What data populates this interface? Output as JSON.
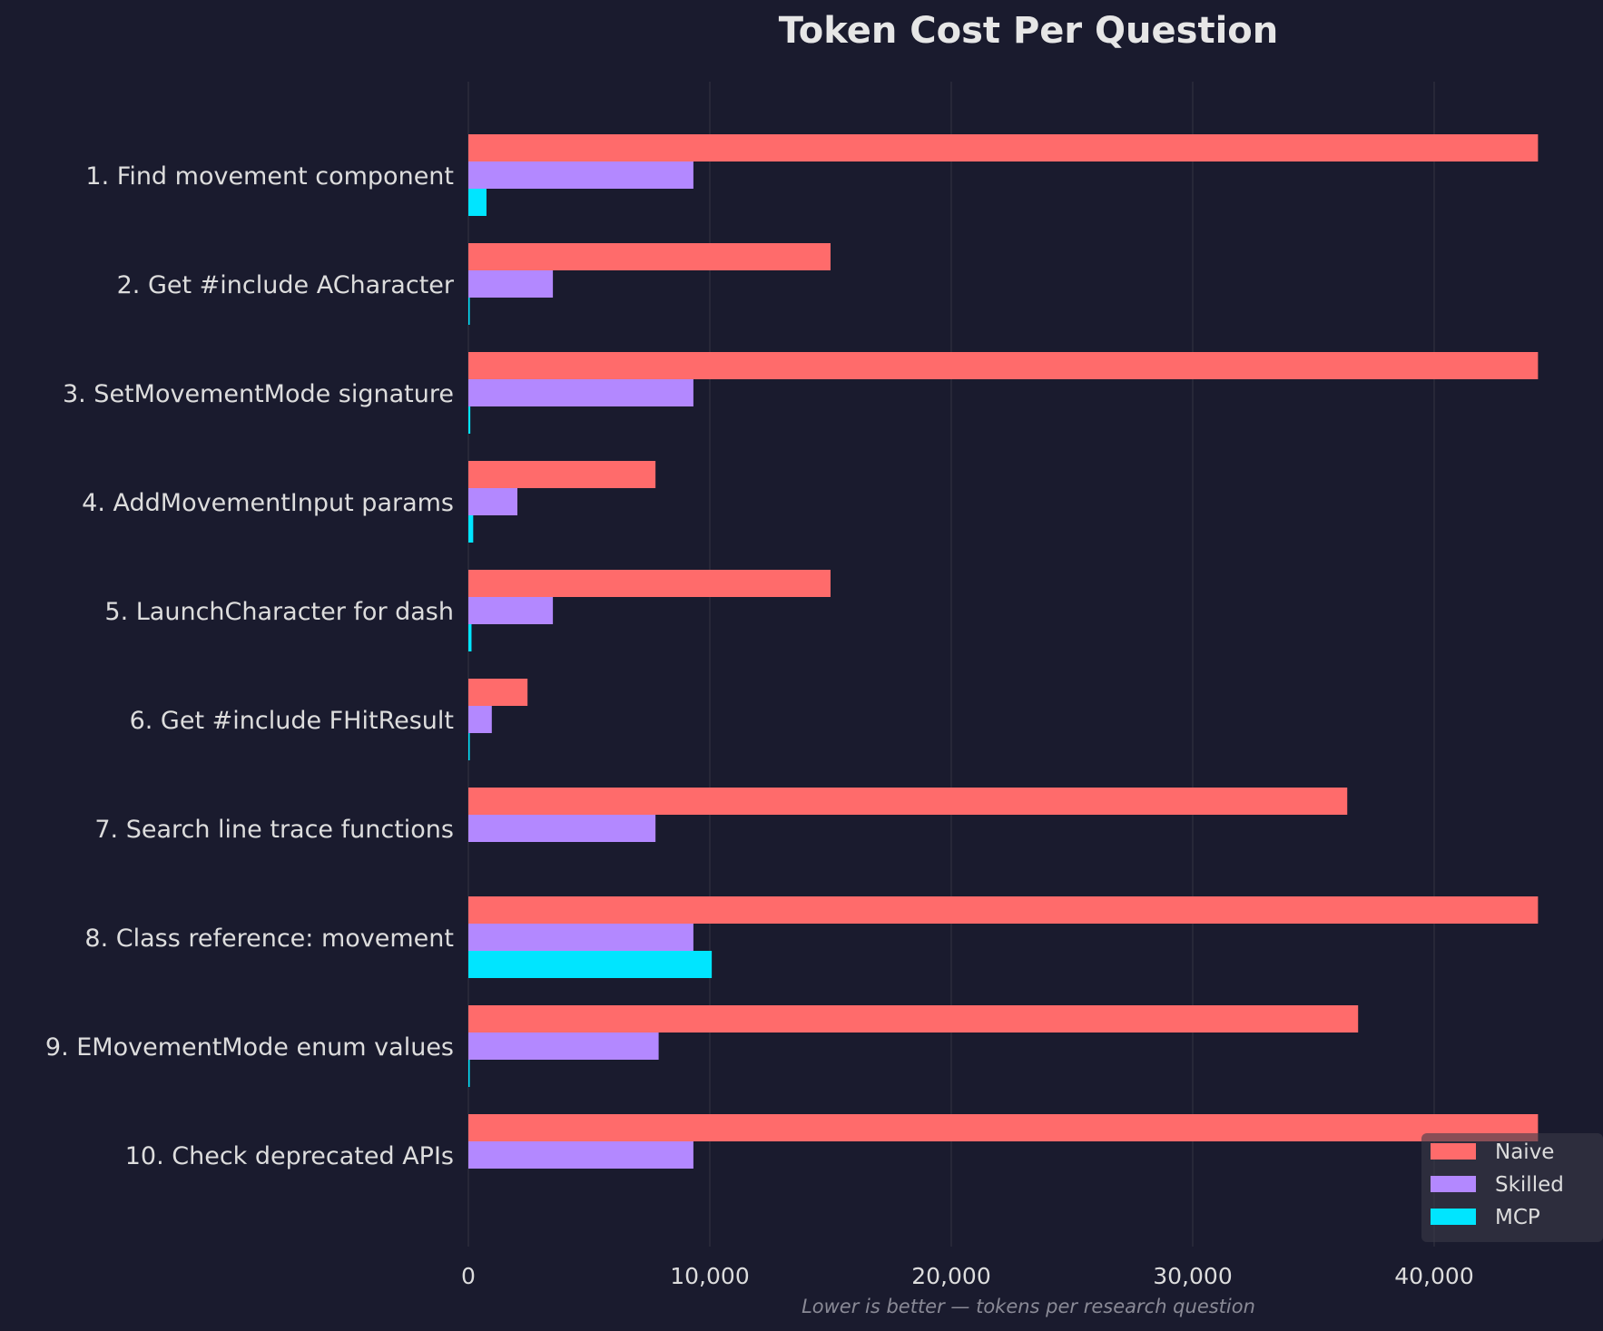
{
  "chart_data": {
    "type": "bar",
    "orientation": "horizontal",
    "title": "Token Cost Per Question",
    "subtitle": "Lower is better — tokens per research question",
    "xlabel": "",
    "ylabel": "",
    "xlim": [
      0,
      46500
    ],
    "xticks": [
      0,
      10000,
      20000,
      30000,
      40000
    ],
    "xtick_labels": [
      "0",
      "10,000",
      "20,000",
      "30,000",
      "40,000"
    ],
    "grid": "vertical",
    "legend_position": "bottom-right",
    "categories": [
      "1. Find movement component",
      "2. Get #include ACharacter",
      "3. SetMovementMode signature",
      "4. AddMovementInput params",
      "5. LaunchCharacter for dash",
      "6. Get #include FHitResult",
      "7. Search line trace functions",
      "8. Class reference: movement",
      "9. EMovementMode enum values",
      "10. Check deprecated APIs"
    ],
    "series": [
      {
        "name": "Naive",
        "color": "#ff6b6b",
        "values": [
          44300,
          15000,
          44300,
          7750,
          15000,
          2450,
          36400,
          44300,
          36850,
          44300
        ]
      },
      {
        "name": "Skilled",
        "color": "#b388ff",
        "values": [
          9320,
          3500,
          9320,
          2030,
          3500,
          970,
          7750,
          9320,
          7880,
          9320
        ]
      },
      {
        "name": "MCP",
        "color": "#00e5ff",
        "values": [
          750,
          30,
          80,
          200,
          130,
          30,
          0,
          10080,
          30,
          0
        ]
      }
    ],
    "colors": {
      "background": "#1a1b2e",
      "grid": "#3a3a48",
      "text": "#dddddd"
    }
  }
}
